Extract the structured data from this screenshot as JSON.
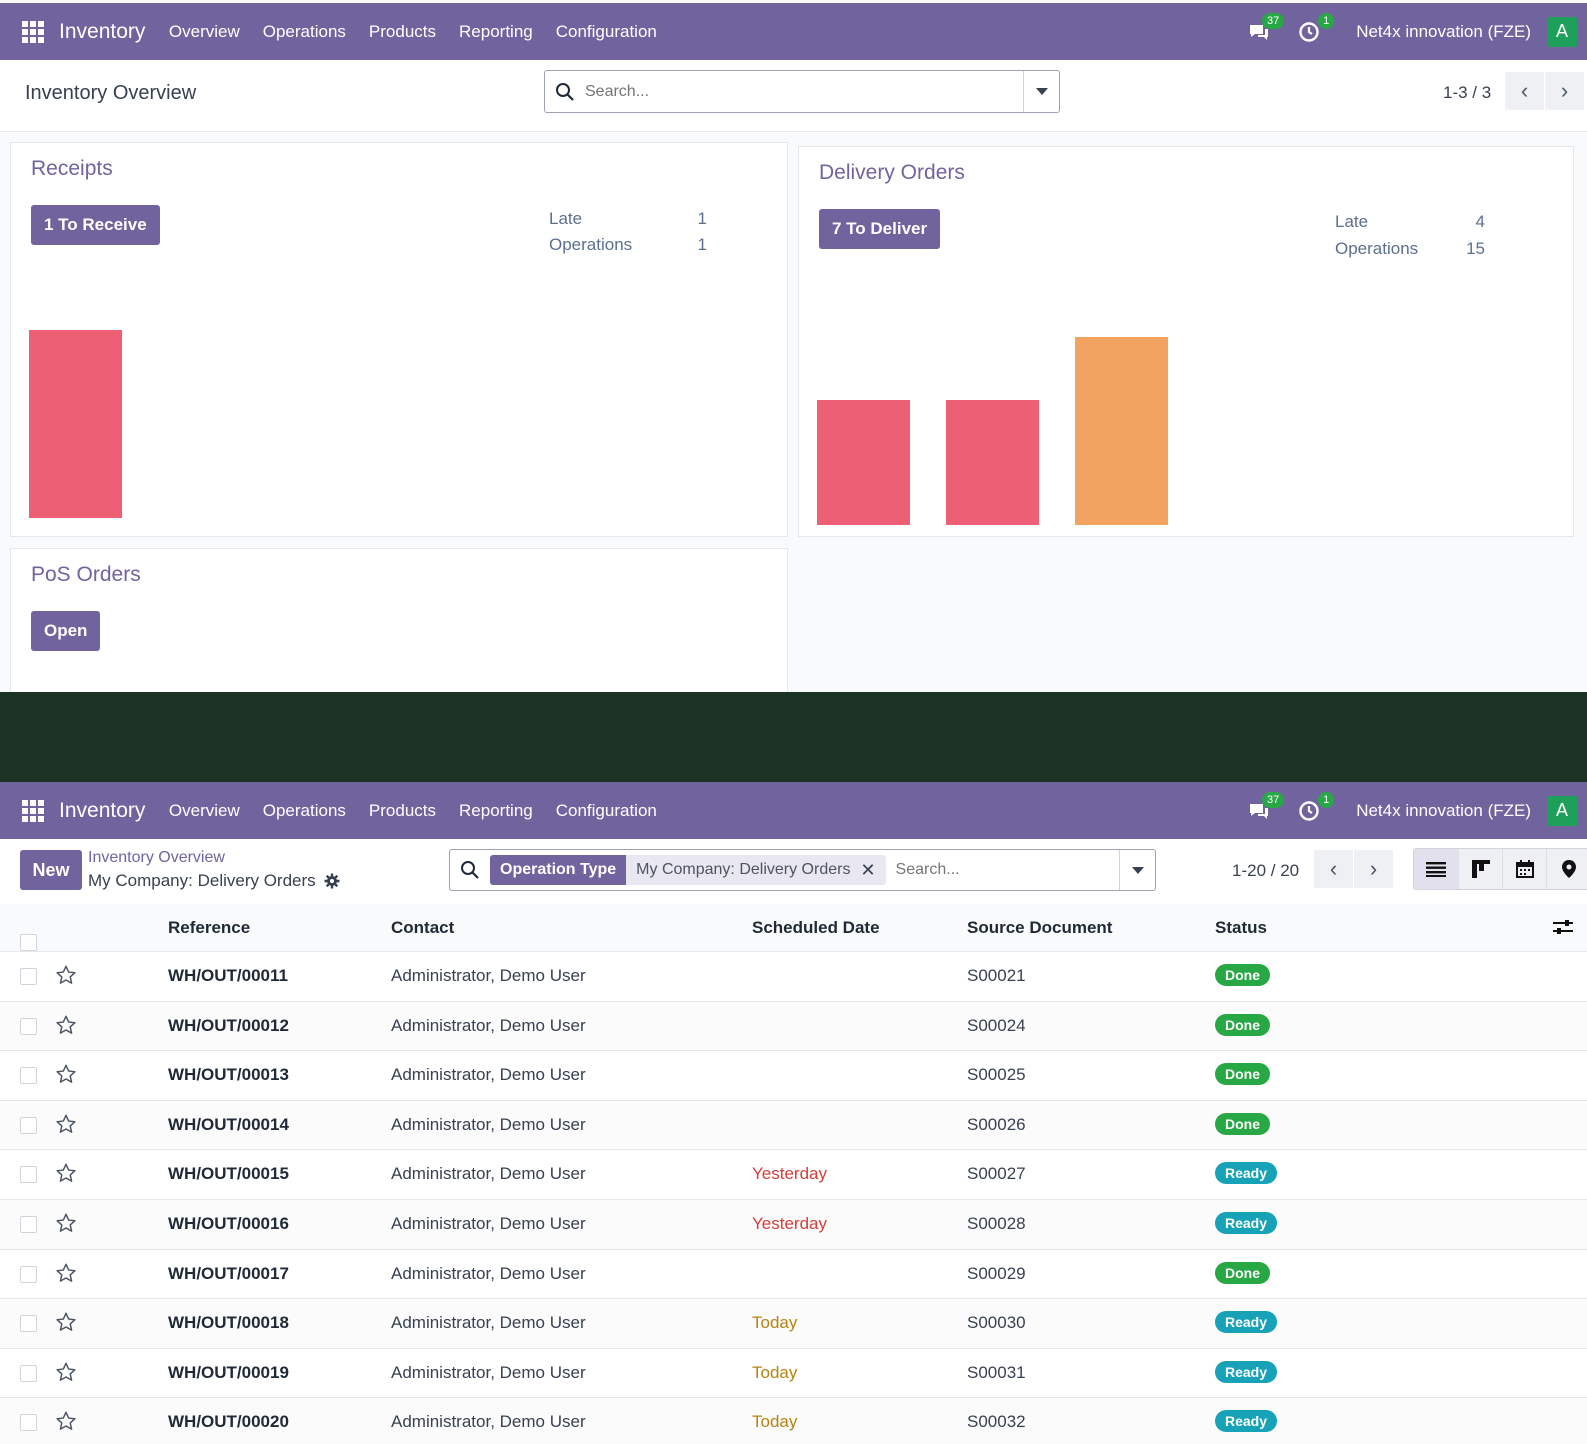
{
  "navbar": {
    "app_name": "Inventory",
    "menu": [
      "Overview",
      "Operations",
      "Products",
      "Reporting",
      "Configuration"
    ],
    "messages_count": "37",
    "activities_count": "1",
    "company": "Net4x innovation (FZE)",
    "avatar_letter": "A"
  },
  "overview": {
    "title": "Inventory Overview",
    "search_placeholder": "Search...",
    "pager": "1-3 / 3",
    "cards": {
      "receipts": {
        "title": "Receipts",
        "button": "1 To Receive",
        "late_label": "Late",
        "late_value": "1",
        "operations_label": "Operations",
        "operations_value": "1",
        "bars": [
          {
            "value": 1,
            "color": "#ec5f74"
          }
        ]
      },
      "delivery": {
        "title": "Delivery Orders",
        "button": "7 To Deliver",
        "late_label": "Late",
        "late_value": "4",
        "operations_label": "Operations",
        "operations_value": "15",
        "bars": [
          {
            "value": 2,
            "color": "#ec5f74"
          },
          {
            "value": 2,
            "color": "#ec5f74"
          },
          {
            "value": 3,
            "color": "#f2a35f"
          }
        ]
      },
      "pos": {
        "title": "PoS Orders",
        "button": "Open"
      }
    }
  },
  "list_view": {
    "new_button": "New",
    "breadcrumb_parent": "Inventory Overview",
    "breadcrumb_current": "My Company: Delivery Orders",
    "facet_label": "Operation Type",
    "facet_value": "My Company: Delivery Orders",
    "search_placeholder": "Search...",
    "pager": "1-20 / 20",
    "columns": [
      "Reference",
      "Contact",
      "Scheduled Date",
      "Source Document",
      "Status"
    ],
    "status_colors": {
      "Done": "#28a745",
      "Ready": "#17a2b8"
    },
    "rows": [
      {
        "ref": "WH/OUT/00011",
        "contact": "Administrator, Demo User",
        "date": "",
        "date_kind": "",
        "source": "S00021",
        "status": "Done"
      },
      {
        "ref": "WH/OUT/00012",
        "contact": "Administrator, Demo User",
        "date": "",
        "date_kind": "",
        "source": "S00024",
        "status": "Done"
      },
      {
        "ref": "WH/OUT/00013",
        "contact": "Administrator, Demo User",
        "date": "",
        "date_kind": "",
        "source": "S00025",
        "status": "Done"
      },
      {
        "ref": "WH/OUT/00014",
        "contact": "Administrator, Demo User",
        "date": "",
        "date_kind": "",
        "source": "S00026",
        "status": "Done"
      },
      {
        "ref": "WH/OUT/00015",
        "contact": "Administrator, Demo User",
        "date": "Yesterday",
        "date_kind": "red",
        "source": "S00027",
        "status": "Ready"
      },
      {
        "ref": "WH/OUT/00016",
        "contact": "Administrator, Demo User",
        "date": "Yesterday",
        "date_kind": "red",
        "source": "S00028",
        "status": "Ready"
      },
      {
        "ref": "WH/OUT/00017",
        "contact": "Administrator, Demo User",
        "date": "",
        "date_kind": "",
        "source": "S00029",
        "status": "Done"
      },
      {
        "ref": "WH/OUT/00018",
        "contact": "Administrator, Demo User",
        "date": "Today",
        "date_kind": "yellow",
        "source": "S00030",
        "status": "Ready"
      },
      {
        "ref": "WH/OUT/00019",
        "contact": "Administrator, Demo User",
        "date": "Today",
        "date_kind": "yellow",
        "source": "S00031",
        "status": "Ready"
      },
      {
        "ref": "WH/OUT/00020",
        "contact": "Administrator, Demo User",
        "date": "Today",
        "date_kind": "yellow",
        "source": "S00032",
        "status": "Ready"
      }
    ]
  }
}
